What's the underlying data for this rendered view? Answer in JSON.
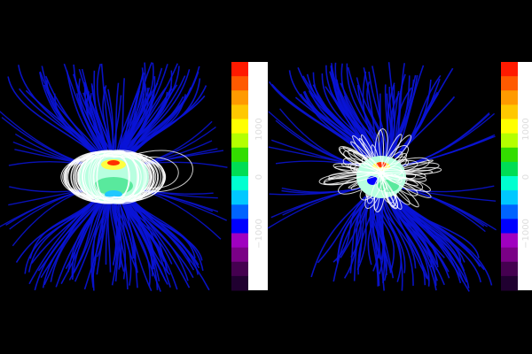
{
  "panels": [
    {
      "name": "left",
      "colorbar": {
        "ticks": [
          {
            "value": 1000,
            "label": "1000"
          },
          {
            "value": 0,
            "label": "0"
          },
          {
            "value": -1000,
            "label": "−1000"
          }
        ]
      }
    },
    {
      "name": "right",
      "colorbar": {
        "ticks": [
          {
            "value": 1000,
            "label": "1000"
          },
          {
            "value": 0,
            "label": "0"
          },
          {
            "value": -1000,
            "label": "−1000"
          }
        ]
      }
    }
  ],
  "colorbar_colors": [
    "#ff1a00",
    "#ff5a00",
    "#ff9a00",
    "#ffc800",
    "#ffff00",
    "#b4ff00",
    "#33dd00",
    "#00dd55",
    "#00ffd0",
    "#00c8ff",
    "#0064ff",
    "#0000ff",
    "#a000c0",
    "#7a0086",
    "#450050",
    "#200030"
  ],
  "line_colors": {
    "open_field": "#0a14d8",
    "closed_field": "#ffffff"
  }
}
